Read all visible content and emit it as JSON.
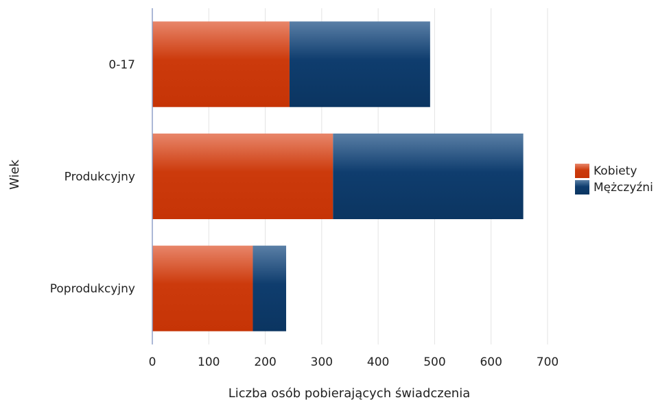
{
  "chart_data": {
    "type": "bar",
    "orientation": "horizontal",
    "stacked": true,
    "categories": [
      "0-17",
      "Produkcyjny",
      "Poprodukcyjny"
    ],
    "series": [
      {
        "name": "Kobiety",
        "values": [
          243,
          320,
          178
        ],
        "color": "#cc3a0c"
      },
      {
        "name": "Mężczyźni",
        "values": [
          249,
          337,
          59
        ],
        "color": "#0f3d6e"
      }
    ],
    "xlabel": "Liczba osób pobierających świadczenia",
    "ylabel": "Wiek",
    "xlim": [
      0,
      700
    ],
    "xticks": [
      0,
      100,
      200,
      300,
      400,
      500,
      600,
      700
    ],
    "grid": "vertical",
    "legend_position": "right"
  }
}
